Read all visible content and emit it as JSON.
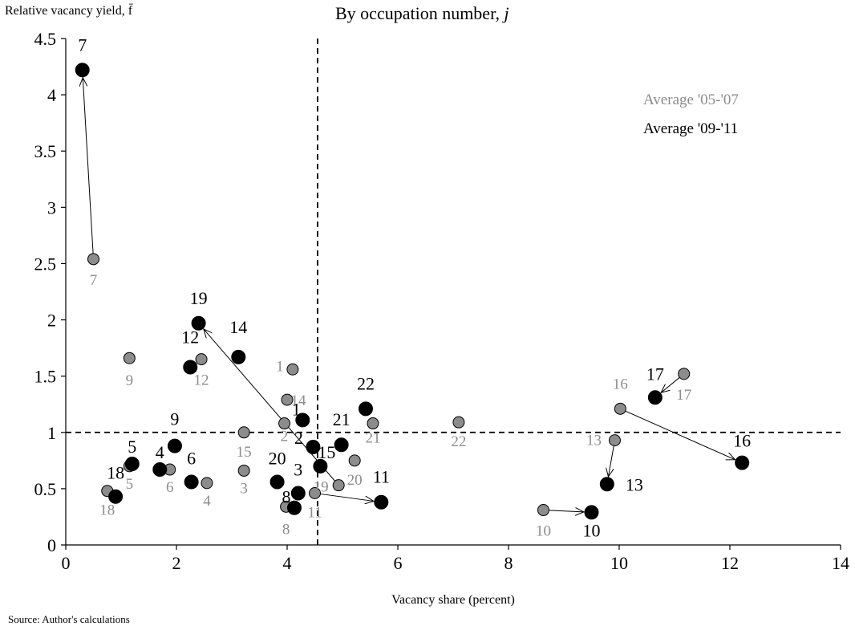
{
  "chart_data": {
    "type": "scatter",
    "title": "By occupation number, j",
    "title_main": "By occupation number,",
    "title_var": "j",
    "ylabel": "Relative vacancy yield, f̄",
    "xlabel": "Vacancy share (percent)",
    "source": "Source: Author's calculations",
    "xlim": [
      0,
      14
    ],
    "ylim": [
      0,
      4.5
    ],
    "x_ticks": [
      0,
      2,
      4,
      6,
      8,
      10,
      12,
      14
    ],
    "y_ticks": [
      0,
      0.5,
      1,
      1.5,
      2,
      2.5,
      3,
      3.5,
      4,
      4.5
    ],
    "ref_x": 4.55,
    "ref_y": 1,
    "legend": [
      {
        "name": "Average '05-'07",
        "color": "#8c8c8c"
      },
      {
        "name": "Average '09-'11",
        "color": "#000000"
      }
    ],
    "colors": {
      "old_fill": "#8c8c8c",
      "new_fill": "#000000",
      "old_text": "#8c8c8c",
      "new_text": "#000000"
    },
    "series": [
      {
        "name": "Average '05-'07",
        "points": [
          {
            "label": "2",
            "x": 3.95,
            "y": 1.08
          },
          {
            "label": "3",
            "x": 3.22,
            "y": 0.66
          },
          {
            "label": "4",
            "x": 2.55,
            "y": 0.55
          },
          {
            "label": "5",
            "x": 1.15,
            "y": 0.7
          },
          {
            "label": "6",
            "x": 1.88,
            "y": 0.67
          },
          {
            "label": "7",
            "x": 0.5,
            "y": 2.54
          },
          {
            "label": "8",
            "x": 3.98,
            "y": 0.34
          },
          {
            "label": "9",
            "x": 1.15,
            "y": 1.66
          },
          {
            "label": "10",
            "x": 8.63,
            "y": 0.31
          },
          {
            "label": "11",
            "x": 4.5,
            "y": 0.46
          },
          {
            "label": "12",
            "x": 2.45,
            "y": 1.65
          },
          {
            "label": "13",
            "x": 9.92,
            "y": 0.93
          },
          {
            "label": "14",
            "x": 4.0,
            "y": 1.29
          },
          {
            "label": "15",
            "x": 3.22,
            "y": 1.0
          },
          {
            "label": "16",
            "x": 10.02,
            "y": 1.21
          },
          {
            "label": "17",
            "x": 11.17,
            "y": 1.52
          },
          {
            "label": "18",
            "x": 0.75,
            "y": 0.48
          },
          {
            "label": "19",
            "x": 4.93,
            "y": 0.53
          },
          {
            "label": "20",
            "x": 5.22,
            "y": 0.75
          },
          {
            "label": "21",
            "x": 5.55,
            "y": 1.08
          },
          {
            "label": "22",
            "x": 7.1,
            "y": 1.09
          },
          {
            "label": "1",
            "x": 4.1,
            "y": 1.56
          }
        ]
      },
      {
        "name": "Average '09-'11",
        "points": [
          {
            "label": "1",
            "x": 4.28,
            "y": 1.11
          },
          {
            "label": "2",
            "x": 4.47,
            "y": 0.87
          },
          {
            "label": "3",
            "x": 4.2,
            "y": 0.46
          },
          {
            "label": "4",
            "x": 1.7,
            "y": 0.67
          },
          {
            "label": "5",
            "x": 1.2,
            "y": 0.72
          },
          {
            "label": "6",
            "x": 2.27,
            "y": 0.56
          },
          {
            "label": "7",
            "x": 0.3,
            "y": 4.22
          },
          {
            "label": "8",
            "x": 4.13,
            "y": 0.33
          },
          {
            "label": "9",
            "x": 1.97,
            "y": 0.88
          },
          {
            "label": "10",
            "x": 9.5,
            "y": 0.29
          },
          {
            "label": "11",
            "x": 5.7,
            "y": 0.38
          },
          {
            "label": "12",
            "x": 2.25,
            "y": 1.58
          },
          {
            "label": "13",
            "x": 9.78,
            "y": 0.54
          },
          {
            "label": "14",
            "x": 3.12,
            "y": 1.67
          },
          {
            "label": "15",
            "x": 4.6,
            "y": 0.7
          },
          {
            "label": "16",
            "x": 12.22,
            "y": 0.73
          },
          {
            "label": "17",
            "x": 10.65,
            "y": 1.31
          },
          {
            "label": "18",
            "x": 0.9,
            "y": 0.43
          },
          {
            "label": "19",
            "x": 2.4,
            "y": 1.97
          },
          {
            "label": "20",
            "x": 3.82,
            "y": 0.56
          },
          {
            "label": "21",
            "x": 4.98,
            "y": 0.89
          },
          {
            "label": "22",
            "x": 5.42,
            "y": 1.21
          }
        ]
      }
    ],
    "arrows": [
      "7",
      "19",
      "11",
      "10",
      "13",
      "16",
      "17"
    ]
  }
}
